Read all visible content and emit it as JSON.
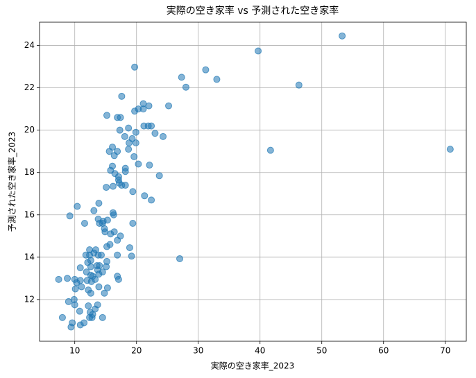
{
  "chart_data": {
    "type": "scatter",
    "title": "実際の空き家率 vs 予測された空き家率",
    "x_label": "実際の空き家率_2023",
    "y_label": "予測された空き家率_2023",
    "color": "#1f77b4",
    "grid": true,
    "xlim": [
      4.3,
      73.4
    ],
    "ylim": [
      10.03,
      25.1
    ],
    "xticks": [
      10,
      20,
      30,
      40,
      50,
      60,
      70
    ],
    "yticks": [
      12,
      14,
      16,
      18,
      20,
      22,
      24
    ],
    "x": [
      53.3,
      39.7,
      31.2,
      27.3,
      33.0,
      19.7,
      28.0,
      46.3,
      70.8,
      41.7,
      27.0,
      17.6,
      25.2,
      21.1,
      22.0,
      20.3,
      21.1,
      19.7,
      15.2,
      16.9,
      17.4,
      21.2,
      21.9,
      22.4,
      18.7,
      17.3,
      19.9,
      23.0,
      24.3,
      18.1,
      19.3,
      18.8,
      19.9,
      16.1,
      15.6,
      16.9,
      18.7,
      19.6,
      16.4,
      20.3,
      22.1,
      16.1,
      18.2,
      18.2,
      15.8,
      16.5,
      23.7,
      17.1,
      17.1,
      17.2,
      17.6,
      15.1,
      16.2,
      18.2,
      19.4,
      21.3,
      22.4,
      10.4,
      13.9,
      13.1,
      16.2,
      16.3,
      9.2,
      13.8,
      15.3,
      14.6,
      14.0,
      11.6,
      14.5,
      19.4,
      14.8,
      14.9,
      16.4,
      15.8,
      17.4,
      16.9,
      15.7,
      15.2,
      18.9,
      12.4,
      13.4,
      13.1,
      12.4,
      13.8,
      14.3,
      11.8,
      16.9,
      19.2,
      12.6,
      12.1,
      15.2,
      13.6,
      14.0,
      15.1,
      10.9,
      12.6,
      11.9,
      13.7,
      14.5,
      13.9,
      16.9,
      17.1,
      12.6,
      12.9,
      8.8,
      7.4,
      10.0,
      10.9,
      13.3,
      12.0,
      10.3,
      12.7,
      11.1,
      10.1,
      13.9,
      15.3,
      12.2,
      14.8,
      12.6,
      9.9,
      10.0,
      9.0,
      13.7,
      12.2,
      13.3,
      12.5,
      12.9,
      10.8,
      8.0,
      12.4,
      12.8,
      14.5,
      9.6,
      10.9,
      9.4,
      11.5
    ],
    "values": [
      24.45,
      23.74,
      22.85,
      22.5,
      22.4,
      22.98,
      22.03,
      22.13,
      19.1,
      19.05,
      13.93,
      21.6,
      21.15,
      21.25,
      21.15,
      21.0,
      21.0,
      20.9,
      20.7,
      20.6,
      20.6,
      20.2,
      20.2,
      20.2,
      20.1,
      20.0,
      19.9,
      19.85,
      19.7,
      19.7,
      19.6,
      19.4,
      19.4,
      19.2,
      19.0,
      19.0,
      19.1,
      18.75,
      18.8,
      18.4,
      18.35,
      18.3,
      18.2,
      18.05,
      18.1,
      17.95,
      17.85,
      17.8,
      17.65,
      17.5,
      17.4,
      17.3,
      17.35,
      17.4,
      17.1,
      16.9,
      16.7,
      16.4,
      16.55,
      16.2,
      16.1,
      16.0,
      15.95,
      15.8,
      15.75,
      15.7,
      15.6,
      15.6,
      15.6,
      15.6,
      15.35,
      15.2,
      15.2,
      15.1,
      15.0,
      14.8,
      14.6,
      14.5,
      14.45,
      14.35,
      14.35,
      14.2,
      14.1,
      14.1,
      14.1,
      14.1,
      14.1,
      14.05,
      13.85,
      13.75,
      13.8,
      13.6,
      13.6,
      13.55,
      13.5,
      13.55,
      13.3,
      13.4,
      13.3,
      13.2,
      13.1,
      12.95,
      13.15,
      13.1,
      13.0,
      12.95,
      12.95,
      12.9,
      12.95,
      12.9,
      12.8,
      12.85,
      12.6,
      12.5,
      12.6,
      12.55,
      12.45,
      12.3,
      12.3,
      12.0,
      11.75,
      11.9,
      11.75,
      11.7,
      11.55,
      11.4,
      11.3,
      11.45,
      11.15,
      11.15,
      11.15,
      11.15,
      10.9,
      10.8,
      10.7,
      10.9
    ]
  }
}
